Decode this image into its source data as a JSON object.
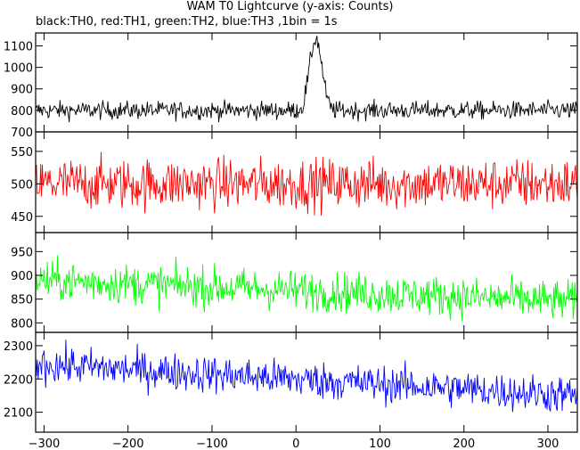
{
  "title": "WAM T0 Lightcurve (y-axis: Counts)",
  "subtitle": "black:TH0, red:TH1, green:TH2, blue:TH3 ,1bin = 1s",
  "chart_data": {
    "type": "line",
    "x_range": [
      -310,
      335
    ],
    "x_ticks": [
      -300,
      -200,
      -100,
      0,
      100,
      200,
      300
    ],
    "panels": [
      {
        "series": "TH0",
        "color": "#000000",
        "ylim": [
          700,
          1160
        ],
        "y_ticks": [
          700,
          800,
          900,
          1000,
          1100
        ],
        "baseline": 800,
        "baseline_end": 800,
        "noise": 30,
        "peak": {
          "center": 24,
          "width": 7,
          "amplitude": 300
        },
        "sample_points": [
          [
            -300,
            800
          ],
          [
            -100,
            800
          ],
          [
            0,
            830
          ],
          [
            15,
            930
          ],
          [
            24,
            1100
          ],
          [
            30,
            970
          ],
          [
            40,
            800
          ],
          [
            200,
            800
          ],
          [
            330,
            800
          ]
        ]
      },
      {
        "series": "TH1",
        "color": "#ff0000",
        "ylim": [
          425,
          580
        ],
        "y_ticks": [
          450,
          500,
          550
        ],
        "baseline": 500,
        "baseline_end": 500,
        "noise": 28,
        "sample_points": [
          [
            -300,
            500
          ],
          [
            0,
            500
          ],
          [
            330,
            500
          ]
        ]
      },
      {
        "series": "TH2",
        "color": "#00ff00",
        "ylim": [
          780,
          990
        ],
        "y_ticks": [
          800,
          850,
          900,
          950
        ],
        "baseline": 890,
        "baseline_end": 845,
        "noise": 30,
        "sample_points": [
          [
            -300,
            890
          ],
          [
            0,
            870
          ],
          [
            330,
            845
          ]
        ]
      },
      {
        "series": "TH3",
        "color": "#0000ff",
        "ylim": [
          2040,
          2340
        ],
        "y_ticks": [
          2100,
          2200,
          2300
        ],
        "baseline": 2245,
        "baseline_end": 2150,
        "noise": 40,
        "sample_points": [
          [
            -300,
            2245
          ],
          [
            0,
            2200
          ],
          [
            330,
            2150
          ]
        ]
      }
    ]
  }
}
